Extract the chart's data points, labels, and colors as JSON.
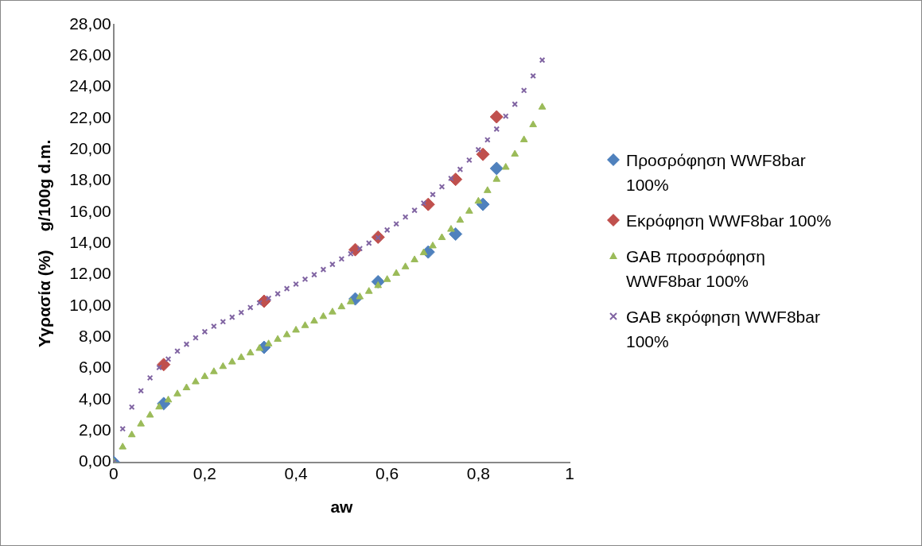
{
  "chart_data": {
    "type": "scatter",
    "xlabel": "aw",
    "ylabel": "Υγρασία (%)    g/100g d.m.",
    "xlim": [
      0,
      1
    ],
    "xticks": [
      0,
      {
        "value": 0.2,
        "label": "0,2"
      },
      {
        "value": 0.4,
        "label": "0,4"
      },
      {
        "value": 0.6,
        "label": "0,6"
      },
      {
        "value": 0.8,
        "label": "0,8"
      },
      1
    ],
    "ylim": [
      0,
      28
    ],
    "yticks": [
      {
        "value": 0,
        "label": "0,00"
      },
      {
        "value": 2,
        "label": "2,00"
      },
      {
        "value": 4,
        "label": "4,00"
      },
      {
        "value": 6,
        "label": "6,00"
      },
      {
        "value": 8,
        "label": "8,00"
      },
      {
        "value": 10,
        "label": "10,00"
      },
      {
        "value": 12,
        "label": "12,00"
      },
      {
        "value": 14,
        "label": "14,00"
      },
      {
        "value": 16,
        "label": "16,00"
      },
      {
        "value": 18,
        "label": "18,00"
      },
      {
        "value": 20,
        "label": "20,00"
      },
      {
        "value": 22,
        "label": "22,00"
      },
      {
        "value": 24,
        "label": "24,00"
      },
      {
        "value": 26,
        "label": "26,00"
      },
      {
        "value": 28,
        "label": "28,00"
      }
    ],
    "grid": false,
    "legend": "right",
    "series": [
      {
        "name": "Προσρόφηση WWF8bar 100%",
        "color": "#4f81bd",
        "marker": "diamond",
        "x": [
          0,
          0.11,
          0.33,
          0.53,
          0.58,
          0.69,
          0.75,
          0.81,
          0.84
        ],
        "values": [
          0,
          3.75,
          7.35,
          10.45,
          11.55,
          13.45,
          14.6,
          16.5,
          18.8
        ]
      },
      {
        "name": "Εκρόφηση WWF8bar 100%",
        "color": "#c0504d",
        "marker": "diamond",
        "x": [
          0.11,
          0.33,
          0.53,
          0.58,
          0.69,
          0.75,
          0.81,
          0.84
        ],
        "values": [
          6.25,
          10.3,
          13.6,
          14.4,
          16.5,
          18.1,
          19.7,
          22.1
        ]
      },
      {
        "name": "GAB προσρόφηση WWF8bar 100%",
        "color": "#9bbb59",
        "marker": "triangle",
        "x": [
          0,
          0.02,
          0.04,
          0.06,
          0.08,
          0.1,
          0.12,
          0.14,
          0.16,
          0.18,
          0.2,
          0.22,
          0.24,
          0.26,
          0.28,
          0.3,
          0.32,
          0.34,
          0.36,
          0.38,
          0.4,
          0.42,
          0.44,
          0.46,
          0.48,
          0.5,
          0.52,
          0.54,
          0.56,
          0.58,
          0.6,
          0.62,
          0.64,
          0.66,
          0.68,
          0.7,
          0.72,
          0.74,
          0.76,
          0.78,
          0.8,
          0.82,
          0.84,
          0.86,
          0.88,
          0.9,
          0.92,
          0.94
        ],
        "values": [
          0,
          0.97,
          1.75,
          2.44,
          3.01,
          3.53,
          3.98,
          4.37,
          4.76,
          5.14,
          5.48,
          5.79,
          6.12,
          6.41,
          6.7,
          6.99,
          7.28,
          7.57,
          7.86,
          8.15,
          8.45,
          8.74,
          9.03,
          9.32,
          9.61,
          9.94,
          10.26,
          10.58,
          10.93,
          11.3,
          11.69,
          12.08,
          12.5,
          12.95,
          13.4,
          13.84,
          14.37,
          14.9,
          15.48,
          16.06,
          16.7,
          17.38,
          18.1,
          18.87,
          19.71,
          20.63,
          21.59,
          22.72
        ]
      },
      {
        "name": "GAB εκρόφηση WWF8bar 100%",
        "color": "#8064a2",
        "marker": "cross",
        "x": [
          0,
          0.02,
          0.04,
          0.06,
          0.08,
          0.1,
          0.12,
          0.14,
          0.16,
          0.18,
          0.2,
          0.22,
          0.24,
          0.26,
          0.28,
          0.3,
          0.32,
          0.34,
          0.36,
          0.38,
          0.4,
          0.42,
          0.44,
          0.46,
          0.48,
          0.5,
          0.52,
          0.54,
          0.56,
          0.58,
          0.6,
          0.62,
          0.64,
          0.66,
          0.68,
          0.7,
          0.72,
          0.74,
          0.76,
          0.78,
          0.8,
          0.82,
          0.84,
          0.86,
          0.88,
          0.9,
          0.92,
          0.94
        ],
        "values": [
          0,
          2.14,
          3.53,
          4.57,
          5.4,
          6.06,
          6.6,
          7.11,
          7.55,
          7.96,
          8.35,
          8.7,
          8.99,
          9.28,
          9.58,
          9.9,
          10.2,
          10.49,
          10.78,
          11.11,
          11.4,
          11.71,
          12.0,
          12.33,
          12.66,
          13.01,
          13.34,
          13.67,
          14.02,
          14.37,
          14.86,
          15.25,
          15.69,
          16.12,
          16.58,
          17.13,
          17.63,
          18.16,
          18.74,
          19.33,
          20.0,
          20.63,
          21.32,
          22.14,
          22.91,
          23.79,
          24.72,
          25.73
        ]
      }
    ]
  }
}
